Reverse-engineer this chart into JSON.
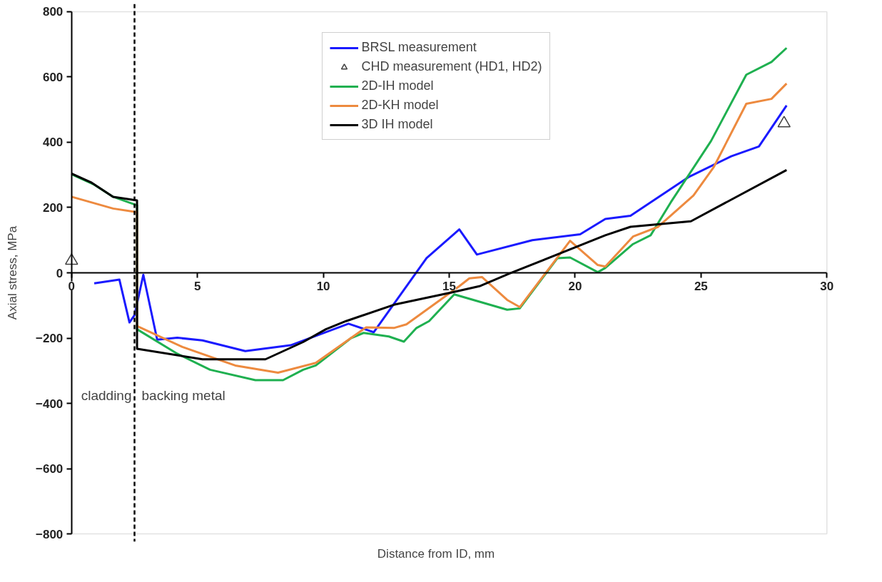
{
  "chart_data": {
    "type": "line",
    "xlabel": "Distance from ID, mm",
    "ylabel": "Axial stress, MPa",
    "xlim": [
      0,
      30
    ],
    "ylim": [
      -800,
      800
    ],
    "xticks": [
      0,
      5,
      10,
      15,
      20,
      25,
      30
    ],
    "yticks": [
      -800,
      -600,
      -400,
      -200,
      0,
      200,
      400,
      600,
      800
    ],
    "grid": false,
    "legend": "top",
    "line_style": "solid",
    "series": [
      {
        "name": "BRSL measurement",
        "marker": "none",
        "color": "#1a1aff",
        "x": [
          0.9,
          1.9,
          2.3,
          2.5,
          2.85,
          3.4,
          4.2,
          5.2,
          6.9,
          8.7,
          11.0,
          12.0,
          14.1,
          15.4,
          16.1,
          18.3,
          20.2,
          21.2,
          22.2,
          24.5,
          26.2,
          27.3,
          28.4
        ],
        "values": [
          -32,
          -21,
          -152,
          -130,
          -6,
          -205,
          -199,
          -207,
          -240,
          -222,
          -156,
          -182,
          45,
          133,
          56,
          100,
          118,
          165,
          175,
          293,
          357,
          387,
          513
        ]
      },
      {
        "name": "CHD measurement (HD1, HD2)",
        "type": "scatter",
        "marker": "triangle",
        "color": "#404040",
        "x": [
          0,
          28.3
        ],
        "values": [
          37,
          458
        ]
      },
      {
        "name": "2D-IH model",
        "marker": "none",
        "color": "#1fb050",
        "x": [
          0,
          0.9,
          1.65,
          2.6,
          2.6,
          4.2,
          5.5,
          7.3,
          8.4,
          9.2,
          9.7,
          11.1,
          11.6,
          12.6,
          13.2,
          13.7,
          14.2,
          15.2,
          17.3,
          17.8,
          19.3,
          19.8,
          20.9,
          21.2,
          22.3,
          23.0,
          23.8,
          25.4,
          26.8,
          27.8,
          28.4
        ],
        "values": [
          302,
          270,
          233,
          207,
          -173,
          -248,
          -297,
          -329,
          -329,
          -297,
          -284,
          -200,
          -184,
          -195,
          -211,
          -169,
          -148,
          -66,
          -113,
          -109,
          45,
          47,
          2,
          15,
          88,
          115,
          216,
          404,
          607,
          646,
          689
        ]
      },
      {
        "name": "2D-KH model",
        "marker": "none",
        "color": "#ed8a3f",
        "x": [
          0,
          1.65,
          2.6,
          2.6,
          4.4,
          6.5,
          8.2,
          9.7,
          11.7,
          12.8,
          13.3,
          15.4,
          15.8,
          16.3,
          17.3,
          17.8,
          19.8,
          20.9,
          21.2,
          22.3,
          23.3,
          24.7,
          25.5,
          26.8,
          27.8,
          28.4
        ],
        "values": [
          233,
          197,
          186,
          -163,
          -227,
          -284,
          -306,
          -276,
          -167,
          -169,
          -158,
          -41,
          -17,
          -13,
          -83,
          -105,
          98,
          24,
          19,
          111,
          141,
          237,
          323,
          518,
          533,
          580
        ]
      },
      {
        "name": "3D IH model",
        "marker": "none",
        "color": "#000000",
        "x": [
          0,
          0.8,
          1.65,
          2.6,
          2.6,
          5.2,
          7.7,
          9.2,
          10.1,
          10.9,
          12.8,
          15.1,
          16.2,
          17.4,
          21.2,
          22.2,
          24.6,
          28.4
        ],
        "values": [
          304,
          276,
          233,
          222,
          -233,
          -265,
          -265,
          -212,
          -173,
          -148,
          -98,
          -60,
          -41,
          -2,
          115,
          141,
          158,
          315
        ]
      }
    ],
    "ref_lines": [
      {
        "axis": "x",
        "value": 2.5,
        "color": "#000000",
        "line_style": "dashed"
      }
    ],
    "annotations": [
      "cladding",
      "backing metal"
    ]
  }
}
